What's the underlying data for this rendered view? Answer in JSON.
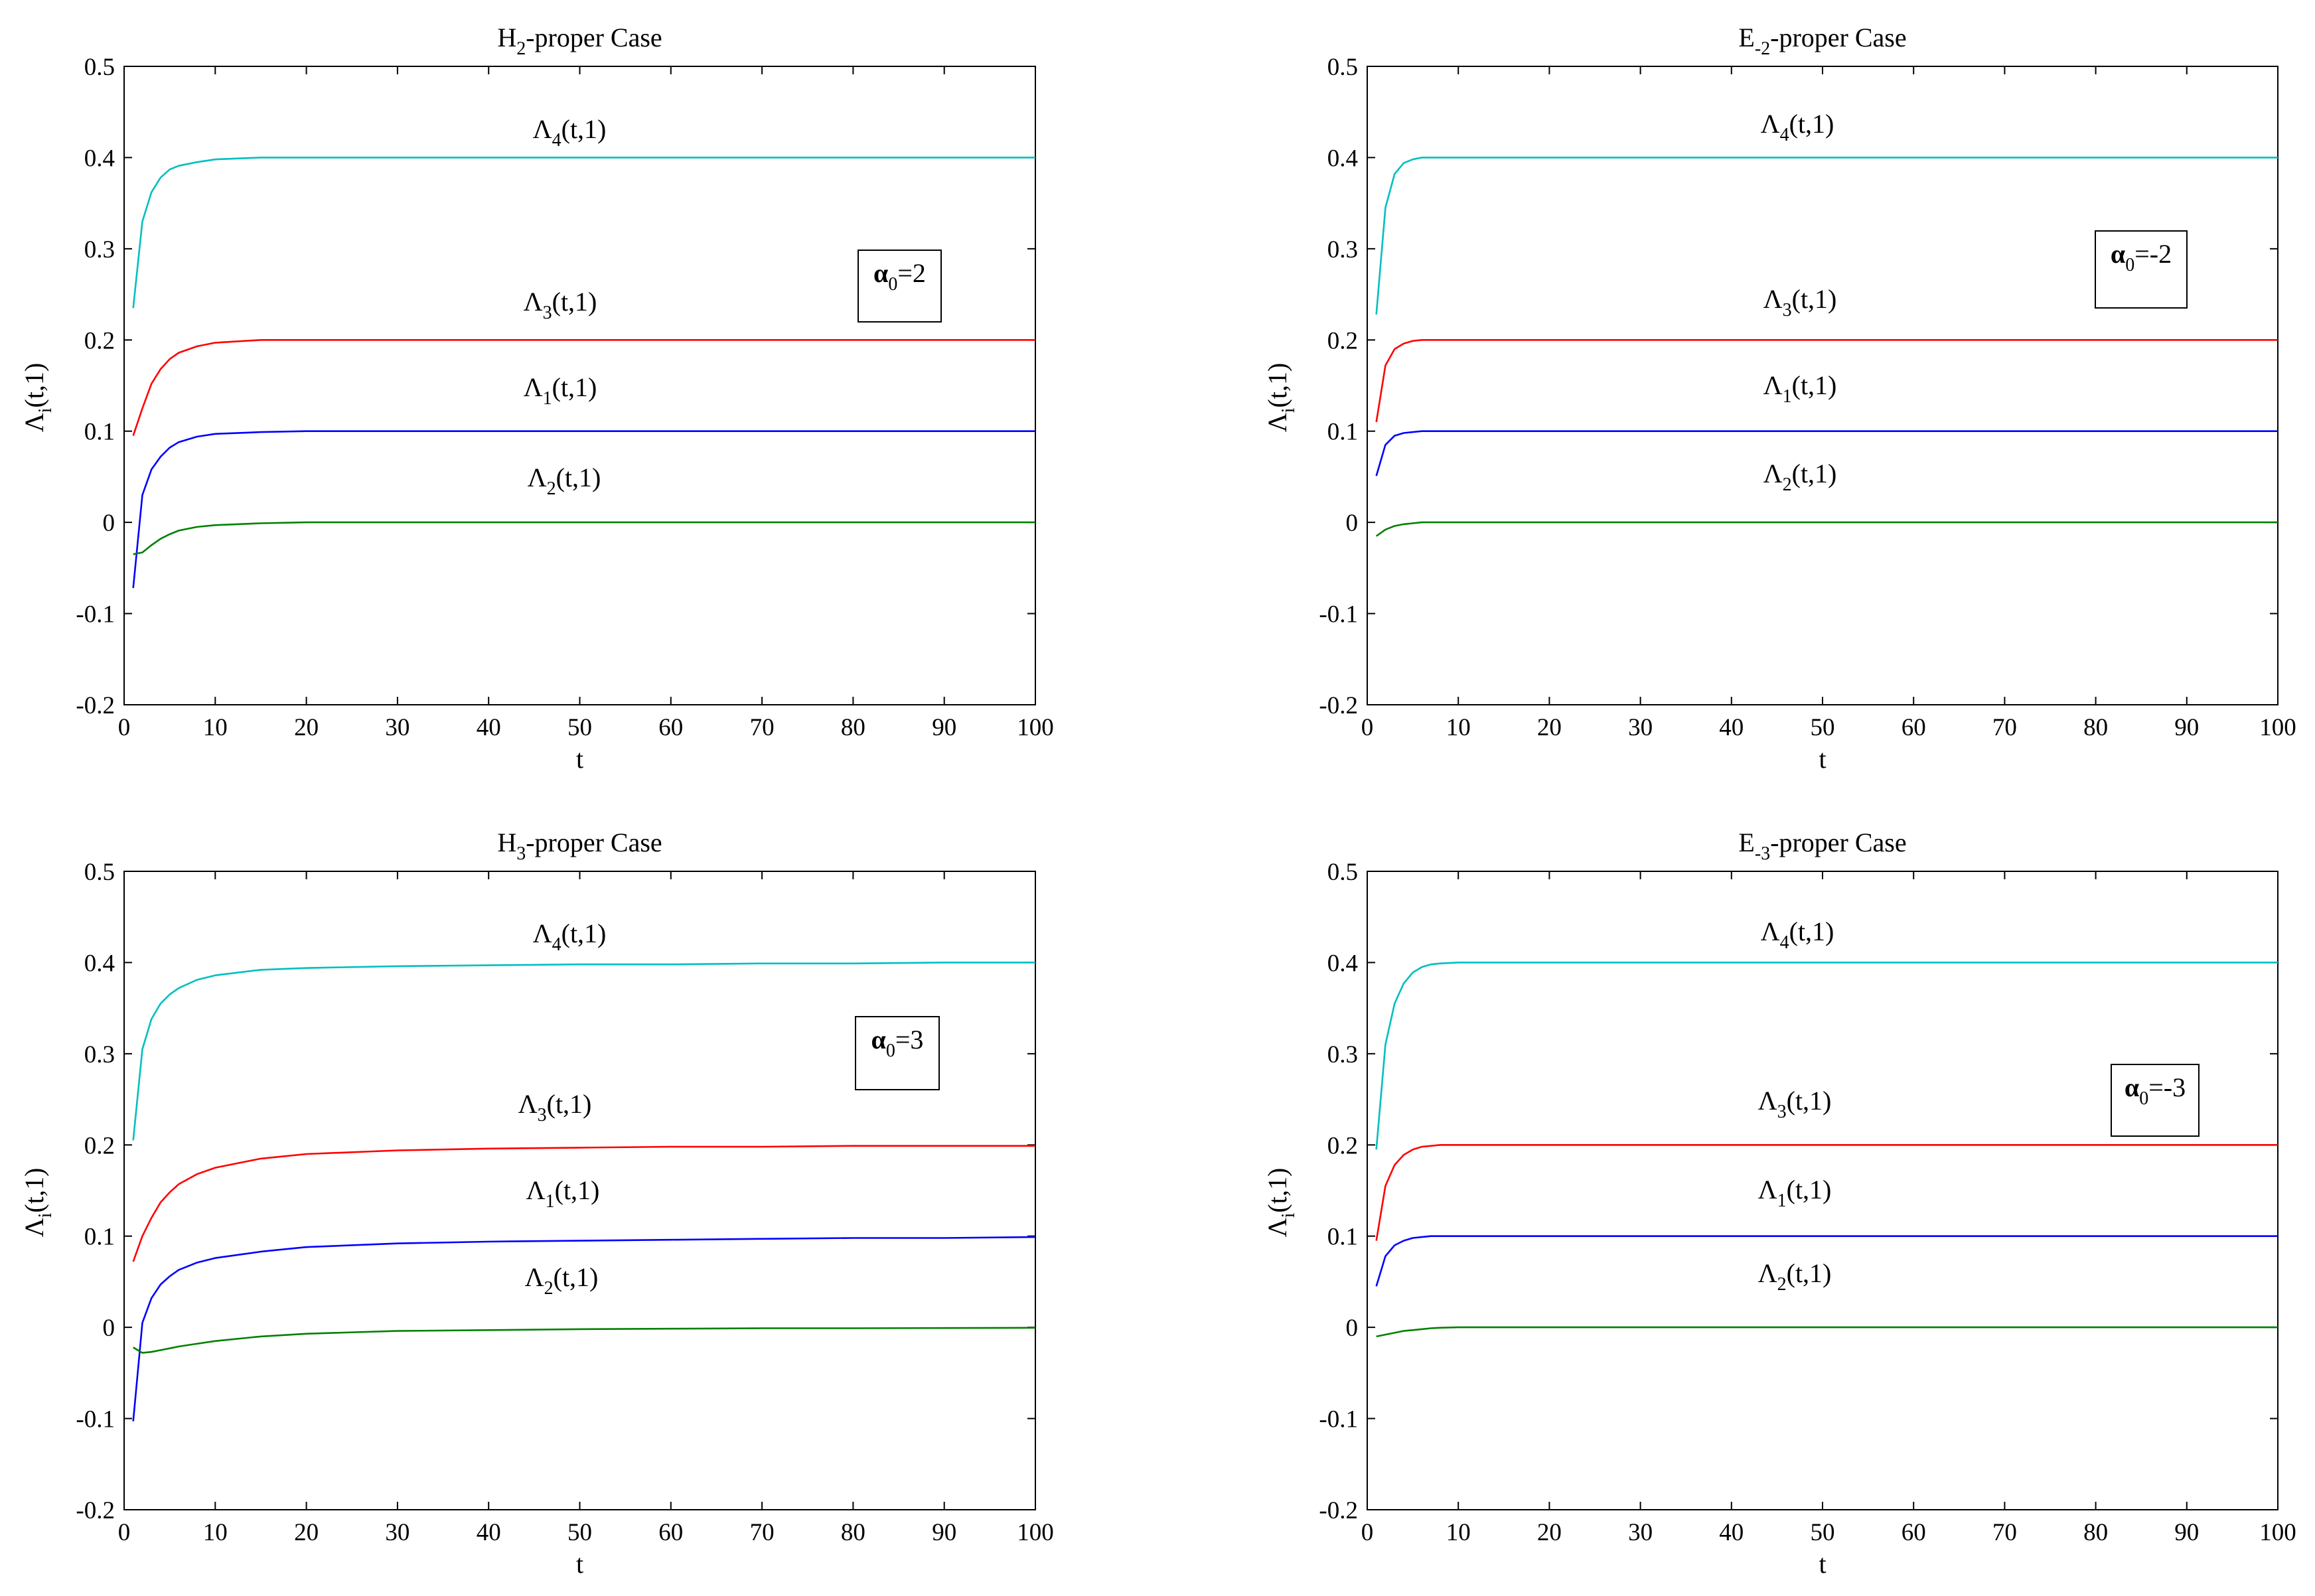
{
  "chart_data": [
    {
      "type": "line",
      "title": {
        "main": "H",
        "sub": "2",
        "rest": "-proper Case"
      },
      "xlabel": "t",
      "ylabel": {
        "main": "Λ",
        "sub": "i",
        "rest": "(t,1)"
      },
      "xlim": [
        0,
        100
      ],
      "ylim": [
        -0.2,
        0.5
      ],
      "xticks": [
        0,
        10,
        20,
        30,
        40,
        50,
        60,
        70,
        80,
        90,
        100
      ],
      "yticks": [
        0.5,
        0.4,
        0.3,
        0.2,
        0.1,
        0,
        -0.1,
        -0.2
      ],
      "xtick_labels": [
        "0",
        "10",
        "20",
        "30",
        "40",
        "50",
        "60",
        "70",
        "80",
        "90",
        "100"
      ],
      "ytick_labels": [
        "0.5",
        "0.4",
        "0.3",
        "0.2",
        "0.1",
        "0",
        "-0.1",
        "-0.2"
      ],
      "annotation": {
        "main": "α",
        "sub": "0",
        "rest": "=2"
      },
      "series": [
        {
          "name": "Λ4(t,1)",
          "label": {
            "main": "Λ",
            "sub": "4",
            "rest": "(t,1)"
          },
          "color": "#00bfbf",
          "x": [
            1,
            2,
            3,
            4,
            5,
            6,
            8,
            10,
            15,
            20,
            30,
            50,
            100
          ],
          "y": [
            0.235,
            0.33,
            0.362,
            0.378,
            0.387,
            0.391,
            0.395,
            0.398,
            0.4,
            0.4,
            0.4,
            0.4,
            0.4
          ]
        },
        {
          "name": "Λ3(t,1)",
          "label": {
            "main": "Λ",
            "sub": "3",
            "rest": "(t,1)"
          },
          "color": "#ff0000",
          "x": [
            1,
            2,
            3,
            4,
            5,
            6,
            8,
            10,
            15,
            20,
            30,
            50,
            100
          ],
          "y": [
            0.095,
            0.125,
            0.152,
            0.168,
            0.179,
            0.186,
            0.193,
            0.197,
            0.2,
            0.2,
            0.2,
            0.2,
            0.2
          ]
        },
        {
          "name": "Λ1(t,1)",
          "label": {
            "main": "Λ",
            "sub": "1",
            "rest": "(t,1)"
          },
          "color": "#0000ff",
          "x": [
            1,
            2,
            3,
            4,
            5,
            6,
            8,
            10,
            15,
            20,
            30,
            50,
            100
          ],
          "y": [
            -0.072,
            0.03,
            0.058,
            0.072,
            0.082,
            0.088,
            0.094,
            0.097,
            0.099,
            0.1,
            0.1,
            0.1,
            0.1
          ]
        },
        {
          "name": "Λ2(t,1)",
          "label": {
            "main": "Λ",
            "sub": "2",
            "rest": "(t,1)"
          },
          "color": "#008000",
          "x": [
            1,
            2,
            3,
            4,
            5,
            6,
            8,
            10,
            15,
            20,
            30,
            50,
            100
          ],
          "y": [
            -0.035,
            -0.033,
            -0.025,
            -0.018,
            -0.013,
            -0.009,
            -0.005,
            -0.003,
            -0.001,
            0,
            0,
            0,
            0
          ]
        }
      ]
    },
    {
      "type": "line",
      "title": {
        "main": "E",
        "sub": "-2",
        "rest": "-proper Case"
      },
      "xlabel": "t",
      "ylabel": {
        "main": "Λ",
        "sub": "i",
        "rest": "(t,1)"
      },
      "xlim": [
        0,
        100
      ],
      "ylim": [
        -0.2,
        0.5
      ],
      "xticks": [
        0,
        10,
        20,
        30,
        40,
        50,
        60,
        70,
        80,
        90,
        100
      ],
      "yticks": [
        0.5,
        0.4,
        0.3,
        0.2,
        0.1,
        0,
        -0.1,
        -0.2
      ],
      "xtick_labels": [
        "0",
        "10",
        "20",
        "30",
        "40",
        "50",
        "60",
        "70",
        "80",
        "90",
        "100"
      ],
      "ytick_labels": [
        "0.5",
        "0.4",
        "0.3",
        "0.2",
        "0.1",
        "0",
        "-0.1",
        "-0.2"
      ],
      "annotation": {
        "main": "α",
        "sub": "0",
        "rest": "=-2"
      },
      "series": [
        {
          "name": "Λ4(t,1)",
          "label": {
            "main": "Λ",
            "sub": "4",
            "rest": "(t,1)"
          },
          "color": "#00bfbf",
          "x": [
            1,
            2,
            3,
            4,
            5,
            6,
            8,
            10,
            20,
            50,
            100
          ],
          "y": [
            0.228,
            0.345,
            0.382,
            0.394,
            0.398,
            0.4,
            0.4,
            0.4,
            0.4,
            0.4,
            0.4
          ]
        },
        {
          "name": "Λ3(t,1)",
          "label": {
            "main": "Λ",
            "sub": "3",
            "rest": "(t,1)"
          },
          "color": "#ff0000",
          "x": [
            1,
            2,
            3,
            4,
            5,
            6,
            8,
            10,
            20,
            50,
            100
          ],
          "y": [
            0.11,
            0.172,
            0.19,
            0.196,
            0.199,
            0.2,
            0.2,
            0.2,
            0.2,
            0.2,
            0.2
          ]
        },
        {
          "name": "Λ1(t,1)",
          "label": {
            "main": "Λ",
            "sub": "1",
            "rest": "(t,1)"
          },
          "color": "#0000ff",
          "x": [
            1,
            2,
            3,
            4,
            5,
            6,
            8,
            10,
            20,
            50,
            100
          ],
          "y": [
            0.051,
            0.085,
            0.095,
            0.098,
            0.099,
            0.1,
            0.1,
            0.1,
            0.1,
            0.1,
            0.1
          ]
        },
        {
          "name": "Λ2(t,1)",
          "label": {
            "main": "Λ",
            "sub": "2",
            "rest": "(t,1)"
          },
          "color": "#008000",
          "x": [
            1,
            2,
            3,
            4,
            5,
            6,
            8,
            10,
            20,
            50,
            100
          ],
          "y": [
            -0.015,
            -0.008,
            -0.004,
            -0.002,
            -0.001,
            0,
            0,
            0,
            0,
            0,
            0
          ]
        }
      ]
    },
    {
      "type": "line",
      "title": {
        "main": "H",
        "sub": "3",
        "rest": "-proper Case"
      },
      "xlabel": "t",
      "ylabel": {
        "main": "Λ",
        "sub": "i",
        "rest": "(t,1)"
      },
      "xlim": [
        0,
        100
      ],
      "ylim": [
        -0.2,
        0.5
      ],
      "xticks": [
        0,
        10,
        20,
        30,
        40,
        50,
        60,
        70,
        80,
        90,
        100
      ],
      "yticks": [
        0.5,
        0.4,
        0.3,
        0.2,
        0.1,
        0,
        -0.1,
        -0.2
      ],
      "xtick_labels": [
        "0",
        "10",
        "20",
        "30",
        "40",
        "50",
        "60",
        "70",
        "80",
        "90",
        "100"
      ],
      "ytick_labels": [
        "0.5",
        "0.4",
        "0.3",
        "0.2",
        "0.1",
        "0",
        "-0.1",
        "-0.2"
      ],
      "annotation": {
        "main": "α",
        "sub": "0",
        "rest": "=3"
      },
      "series": [
        {
          "name": "Λ4(t,1)",
          "label": {
            "main": "Λ",
            "sub": "4",
            "rest": "(t,1)"
          },
          "color": "#00bfbf",
          "x": [
            1,
            2,
            3,
            4,
            5,
            6,
            8,
            10,
            15,
            20,
            30,
            40,
            50,
            60,
            70,
            80,
            90,
            100
          ],
          "y": [
            0.205,
            0.305,
            0.338,
            0.355,
            0.365,
            0.372,
            0.381,
            0.386,
            0.392,
            0.394,
            0.396,
            0.397,
            0.398,
            0.398,
            0.399,
            0.399,
            0.4,
            0.4
          ]
        },
        {
          "name": "Λ3(t,1)",
          "label": {
            "main": "Λ",
            "sub": "3",
            "rest": "(t,1)"
          },
          "color": "#ff0000",
          "x": [
            1,
            2,
            3,
            4,
            5,
            6,
            8,
            10,
            15,
            20,
            30,
            40,
            50,
            60,
            70,
            80,
            90,
            100
          ],
          "y": [
            0.072,
            0.1,
            0.12,
            0.137,
            0.148,
            0.157,
            0.168,
            0.175,
            0.185,
            0.19,
            0.194,
            0.196,
            0.197,
            0.198,
            0.198,
            0.199,
            0.199,
            0.199
          ]
        },
        {
          "name": "Λ1(t,1)",
          "label": {
            "main": "Λ",
            "sub": "1",
            "rest": "(t,1)"
          },
          "color": "#0000ff",
          "x": [
            1,
            2,
            3,
            4,
            5,
            6,
            8,
            10,
            15,
            20,
            30,
            40,
            50,
            60,
            70,
            80,
            90,
            100
          ],
          "y": [
            -0.103,
            0.005,
            0.032,
            0.047,
            0.056,
            0.063,
            0.071,
            0.076,
            0.083,
            0.088,
            0.092,
            0.094,
            0.095,
            0.096,
            0.097,
            0.098,
            0.098,
            0.099
          ]
        },
        {
          "name": "Λ2(t,1)",
          "label": {
            "main": "Λ",
            "sub": "2",
            "rest": "(t,1)"
          },
          "color": "#008000",
          "x": [
            1,
            2,
            3,
            4,
            5,
            6,
            8,
            10,
            15,
            20,
            30,
            40,
            50,
            60,
            70,
            80,
            90,
            100
          ],
          "y": [
            -0.022,
            -0.028,
            -0.027,
            -0.025,
            -0.023,
            -0.021,
            -0.018,
            -0.015,
            -0.01,
            -0.007,
            -0.004,
            -0.003,
            -0.002,
            -0.0015,
            -0.001,
            -0.001,
            -0.0008,
            -0.0005
          ]
        }
      ]
    },
    {
      "type": "line",
      "title": {
        "main": "E",
        "sub": "-3",
        "rest": "-proper Case"
      },
      "xlabel": "t",
      "ylabel": {
        "main": "Λ",
        "sub": "i",
        "rest": "(t,1)"
      },
      "xlim": [
        0,
        100
      ],
      "ylim": [
        -0.2,
        0.5
      ],
      "xticks": [
        0,
        10,
        20,
        30,
        40,
        50,
        60,
        70,
        80,
        90,
        100
      ],
      "yticks": [
        0.5,
        0.4,
        0.3,
        0.2,
        0.1,
        0,
        -0.1,
        -0.2
      ],
      "xtick_labels": [
        "0",
        "10",
        "20",
        "30",
        "40",
        "50",
        "60",
        "70",
        "80",
        "90",
        "100"
      ],
      "ytick_labels": [
        "0.5",
        "0.4",
        "0.3",
        "0.2",
        "0.1",
        "0",
        "-0.1",
        "-0.2"
      ],
      "annotation": {
        "main": "α",
        "sub": "0",
        "rest": "=-3"
      },
      "series": [
        {
          "name": "Λ4(t,1)",
          "label": {
            "main": "Λ",
            "sub": "4",
            "rest": "(t,1)"
          },
          "color": "#00bfbf",
          "x": [
            1,
            2,
            3,
            4,
            5,
            6,
            7,
            8,
            10,
            15,
            20,
            50,
            100
          ],
          "y": [
            0.195,
            0.31,
            0.355,
            0.377,
            0.389,
            0.395,
            0.398,
            0.399,
            0.4,
            0.4,
            0.4,
            0.4,
            0.4
          ]
        },
        {
          "name": "Λ3(t,1)",
          "label": {
            "main": "Λ",
            "sub": "3",
            "rest": "(t,1)"
          },
          "color": "#ff0000",
          "x": [
            1,
            2,
            3,
            4,
            5,
            6,
            7,
            8,
            10,
            15,
            20,
            50,
            100
          ],
          "y": [
            0.095,
            0.155,
            0.178,
            0.189,
            0.195,
            0.198,
            0.199,
            0.2,
            0.2,
            0.2,
            0.2,
            0.2,
            0.2
          ]
        },
        {
          "name": "Λ1(t,1)",
          "label": {
            "main": "Λ",
            "sub": "1",
            "rest": "(t,1)"
          },
          "color": "#0000ff",
          "x": [
            1,
            2,
            3,
            4,
            5,
            6,
            7,
            8,
            10,
            15,
            20,
            50,
            100
          ],
          "y": [
            0.045,
            0.078,
            0.09,
            0.095,
            0.098,
            0.099,
            0.1,
            0.1,
            0.1,
            0.1,
            0.1,
            0.1,
            0.1
          ]
        },
        {
          "name": "Λ2(t,1)",
          "label": {
            "main": "Λ",
            "sub": "2",
            "rest": "(t,1)"
          },
          "color": "#008000",
          "x": [
            1,
            2,
            3,
            4,
            5,
            6,
            7,
            8,
            10,
            15,
            20,
            50,
            100
          ],
          "y": [
            -0.01,
            -0.008,
            -0.006,
            -0.004,
            -0.003,
            -0.002,
            -0.001,
            -0.0005,
            0,
            0,
            0,
            0,
            0
          ]
        }
      ]
    }
  ]
}
